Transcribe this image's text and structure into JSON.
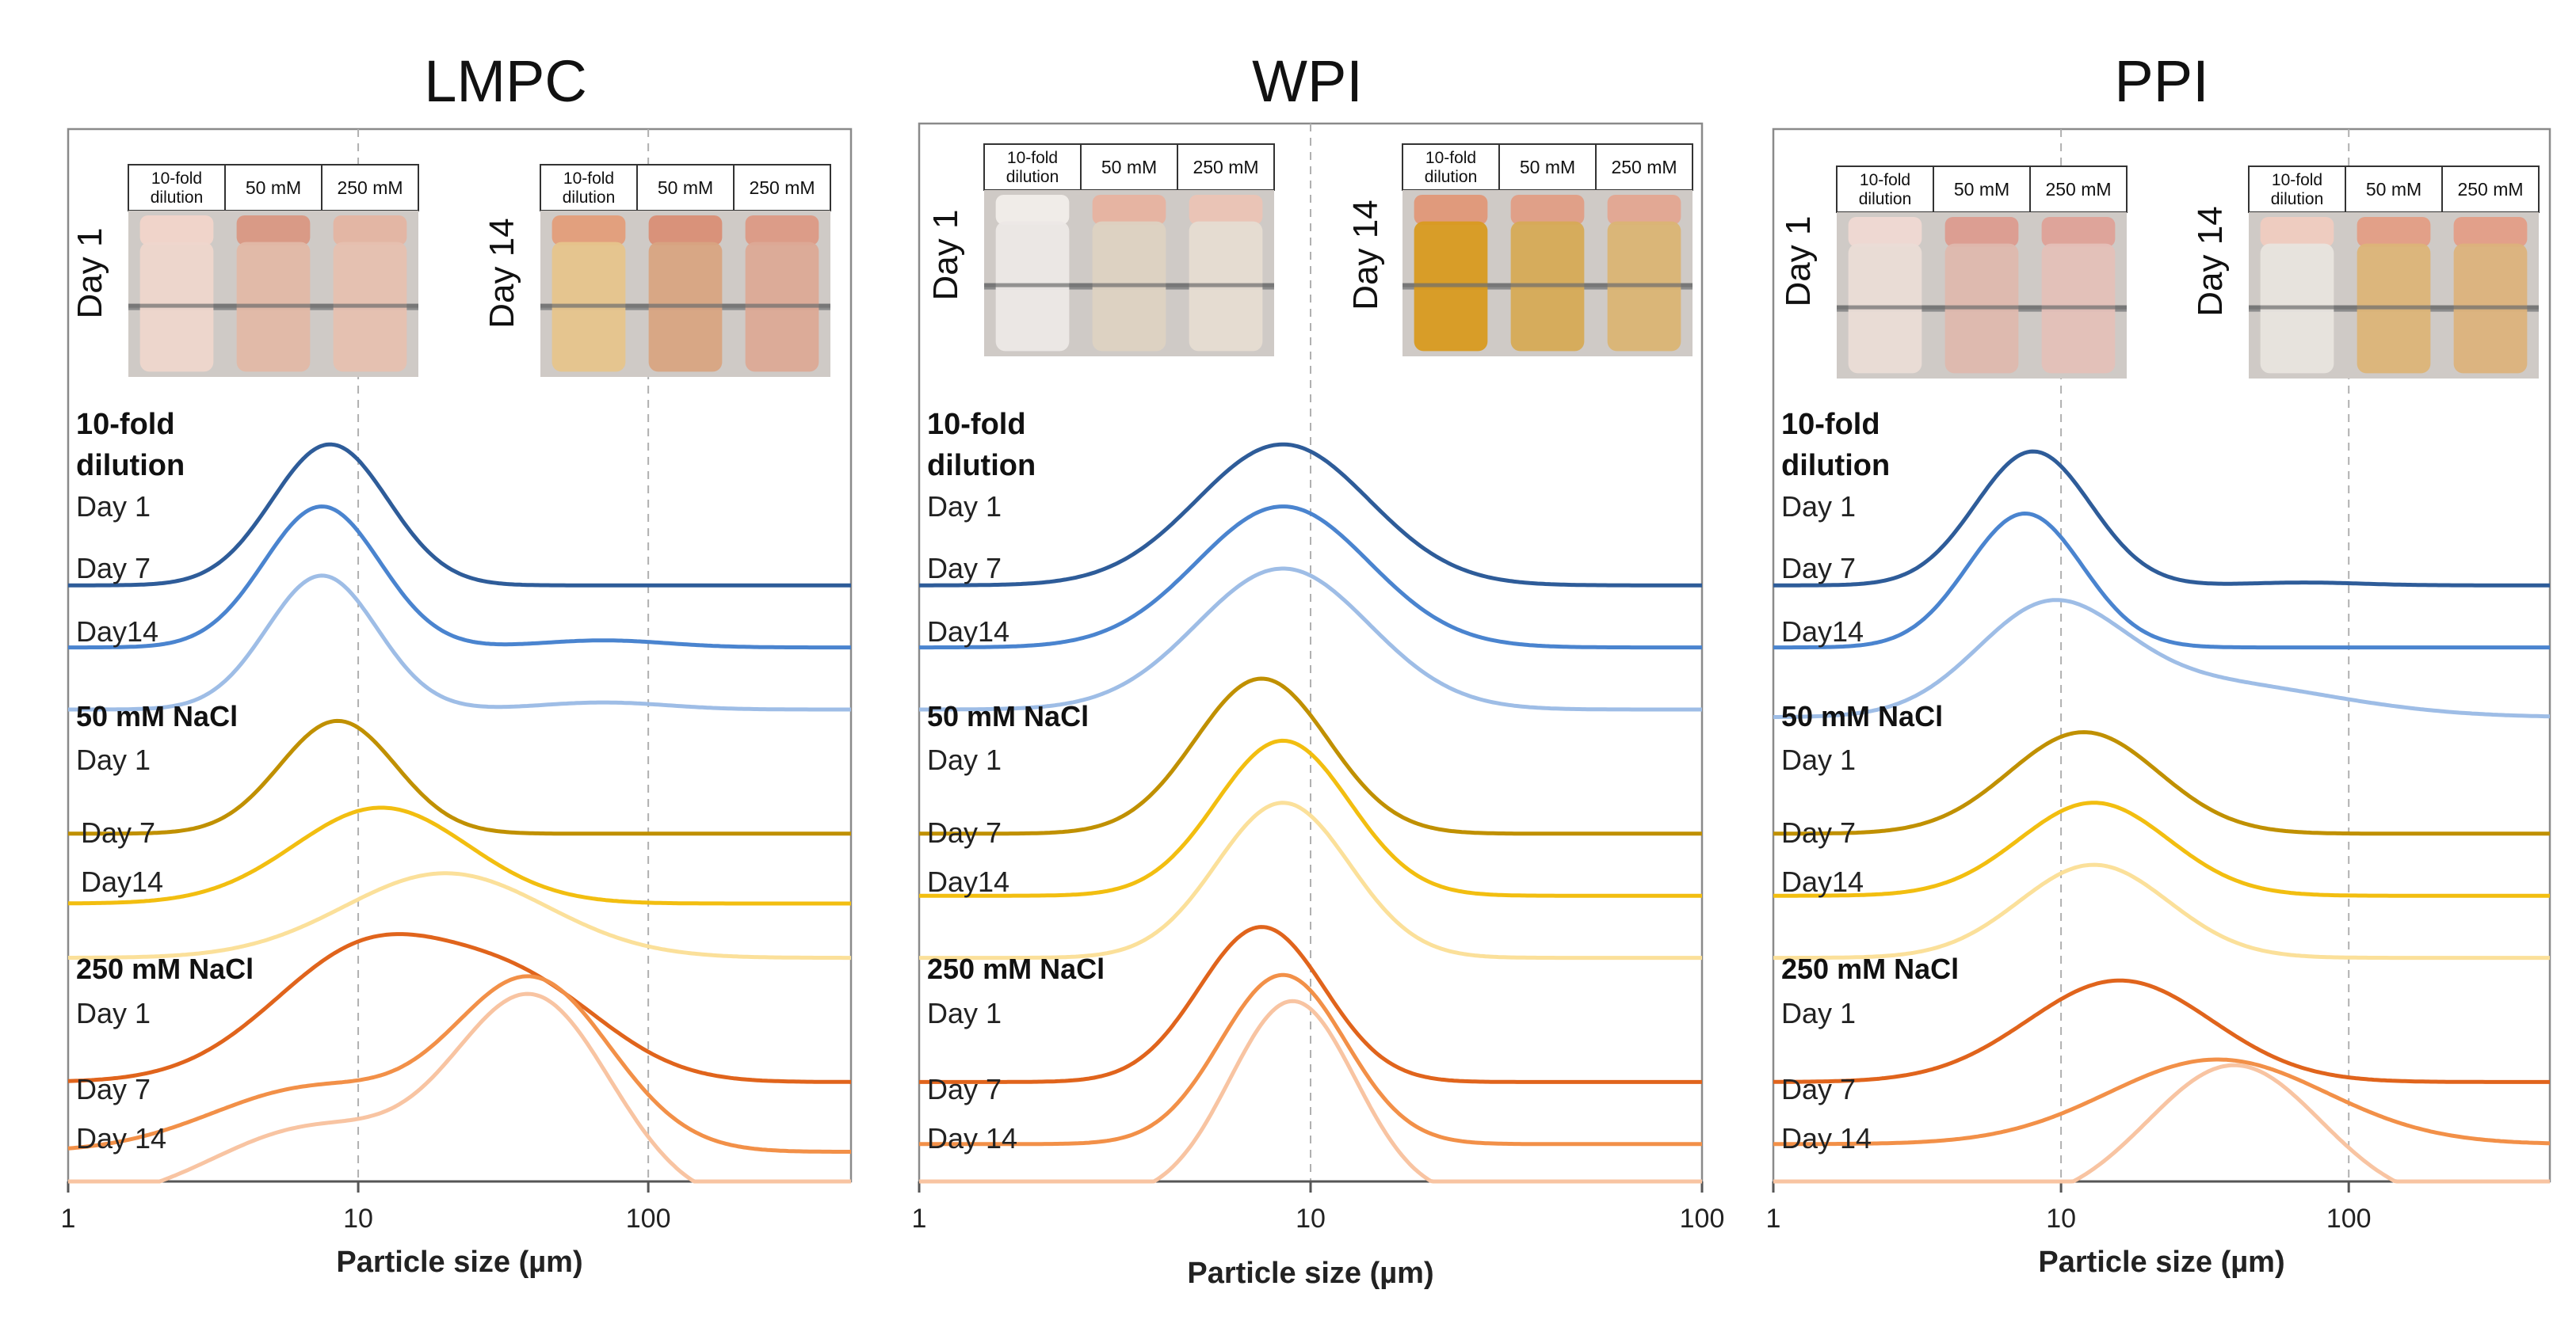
{
  "colors": {
    "dil_d1": "#2e5c99",
    "dil_d7": "#4a84cf",
    "dil_d14": "#9ebde6",
    "nacl50_d1": "#c09000",
    "nacl50_d7": "#f2be10",
    "nacl50_d14": "#fbe09a",
    "nacl250_d1": "#e0641c",
    "nacl250_d7": "#f29048",
    "nacl250_d14": "#f8c4a2",
    "axis": "#555555",
    "grid": "#b0b0b0",
    "frame": "#8a8a8a"
  },
  "chart_data": [
    {
      "type": "line",
      "title": "LMPC",
      "xlabel": "Particle size (µm)",
      "ylabel": "",
      "xscale": "log",
      "xlim": [
        1,
        500
      ],
      "xticks": [
        "1",
        "10",
        "100"
      ],
      "grid": "vertical dashed at 10 and 100",
      "photos": [
        {
          "day_label": "Day 1",
          "headers": [
            "10-fold dilution",
            "50 mM",
            "250 mM"
          ],
          "liquid": [
            "#eed6cc",
            "#e2b8a6",
            "#e6c0b0"
          ],
          "cap": [
            "#f0d4ca",
            "#d99a86",
            "#e3b6a4"
          ]
        },
        {
          "day_label": "Day 14",
          "headers": [
            "10-fold dilution",
            "50 mM",
            "250 mM"
          ],
          "liquid": [
            "#e6c48c",
            "#d8a482",
            "#dca996"
          ],
          "cap": [
            "#e2a07e",
            "#d9927a",
            "#dc9c88"
          ]
        }
      ],
      "groups": [
        {
          "label": "10-fold dilution",
          "day_labels": [
            "Day 1",
            "Day 7",
            "Day14"
          ]
        },
        {
          "label": "50 mM NaCl",
          "day_labels": [
            "Day 1",
            "Day 7",
            "Day14"
          ]
        },
        {
          "label": "250 mM NaCl",
          "day_labels": [
            "Day 1",
            "Day 7",
            "Day 14"
          ]
        }
      ],
      "series": [
        {
          "name": "10-fold dilution Day 1",
          "color_key": "dil_d1",
          "baseline_offset": 7.6,
          "peaks": [
            {
              "center": 8,
              "width": 0.2,
              "height": 1.0
            }
          ]
        },
        {
          "name": "10-fold dilution Day 7",
          "color_key": "dil_d7",
          "baseline_offset": 6.8,
          "peaks": [
            {
              "center": 7.5,
              "width": 0.2,
              "height": 1.0
            },
            {
              "center": 70,
              "width": 0.22,
              "height": 0.05
            }
          ]
        },
        {
          "name": "10-fold dilution Day14",
          "color_key": "dil_d14",
          "baseline_offset": 6.0,
          "peaks": [
            {
              "center": 7.5,
              "width": 0.19,
              "height": 0.95
            },
            {
              "center": 70,
              "width": 0.22,
              "height": 0.05
            }
          ]
        },
        {
          "name": "50 mM NaCl Day 1",
          "color_key": "nacl50_d1",
          "baseline_offset": 4.4,
          "peaks": [
            {
              "center": 8.5,
              "width": 0.2,
              "height": 0.8
            }
          ]
        },
        {
          "name": "50 mM NaCl Day 7",
          "color_key": "nacl50_d7",
          "baseline_offset": 3.5,
          "peaks": [
            {
              "center": 12,
              "width": 0.3,
              "height": 0.68
            }
          ]
        },
        {
          "name": "50 mM NaCl Day14",
          "color_key": "nacl50_d14",
          "baseline_offset": 2.8,
          "peaks": [
            {
              "center": 20,
              "width": 0.35,
              "height": 0.6
            }
          ]
        },
        {
          "name": "250 mM NaCl Day 1",
          "color_key": "nacl250_d1",
          "baseline_offset": 1.2,
          "peaks": [
            {
              "center": 11,
              "width": 0.33,
              "height": 0.95
            },
            {
              "center": 40,
              "width": 0.28,
              "height": 0.55
            }
          ]
        },
        {
          "name": "250 mM NaCl Day 7",
          "color_key": "nacl250_d7",
          "baseline_offset": 0.3,
          "peaks": [
            {
              "center": 40,
              "width": 0.27,
              "height": 1.2
            },
            {
              "center": 7,
              "width": 0.35,
              "height": 0.45
            }
          ]
        },
        {
          "name": "250 mM NaCl Day 14",
          "color_key": "nacl250_d14",
          "baseline_offset": -0.4,
          "peaks": [
            {
              "center": 40,
              "width": 0.27,
              "height": 1.45
            },
            {
              "center": 7,
              "width": 0.35,
              "height": 0.55
            }
          ]
        }
      ]
    },
    {
      "type": "line",
      "title": "WPI",
      "xlabel": "Particle size (µm)",
      "ylabel": "",
      "xscale": "log",
      "xlim": [
        1,
        100
      ],
      "xticks": [
        "1",
        "10",
        "100"
      ],
      "grid": "vertical dashed at 10",
      "photos": [
        {
          "day_label": "Day 1",
          "headers": [
            "10-fold dilution",
            "50 mM",
            "250 mM"
          ],
          "liquid": [
            "#ece8e6",
            "#ddd2c2",
            "#e6dcd2"
          ],
          "cap": [
            "#f0ece8",
            "#e6b4a2",
            "#eac4b6"
          ]
        },
        {
          "day_label": "Day 14",
          "headers": [
            "10-fold dilution",
            "50 mM",
            "250 mM"
          ],
          "liquid": [
            "#d89a20",
            "#d6aa56",
            "#dab474"
          ],
          "cap": [
            "#e09a7c",
            "#e0a088",
            "#e2a894"
          ]
        }
      ],
      "groups": [
        {
          "label": "10-fold dilution",
          "day_labels": [
            "Day 1",
            "Day 7",
            "Day14"
          ]
        },
        {
          "label": "50 mM NaCl",
          "day_labels": [
            "Day 1",
            "Day 7",
            "Day14"
          ]
        },
        {
          "label": "250 mM NaCl",
          "day_labels": [
            "Day 1",
            "Day 7",
            "Day 14"
          ]
        }
      ],
      "series": [
        {
          "name": "10-fold dilution Day 1",
          "color_key": "dil_d1",
          "baseline_offset": 7.6,
          "peaks": [
            {
              "center": 8.5,
              "width": 0.22,
              "height": 1.0
            }
          ]
        },
        {
          "name": "10-fold dilution Day 7",
          "color_key": "dil_d7",
          "baseline_offset": 6.8,
          "peaks": [
            {
              "center": 8.5,
              "width": 0.22,
              "height": 1.0
            }
          ]
        },
        {
          "name": "10-fold dilution Day14",
          "color_key": "dil_d14",
          "baseline_offset": 6.0,
          "peaks": [
            {
              "center": 8.5,
              "width": 0.22,
              "height": 1.0
            }
          ]
        },
        {
          "name": "50 mM NaCl Day 1",
          "color_key": "nacl50_d1",
          "baseline_offset": 4.4,
          "peaks": [
            {
              "center": 7.5,
              "width": 0.17,
              "height": 1.1
            }
          ]
        },
        {
          "name": "50 mM NaCl Day 7",
          "color_key": "nacl50_d7",
          "baseline_offset": 3.6,
          "peaks": [
            {
              "center": 8.5,
              "width": 0.17,
              "height": 1.1
            }
          ]
        },
        {
          "name": "50 mM NaCl Day14",
          "color_key": "nacl50_d14",
          "baseline_offset": 2.8,
          "peaks": [
            {
              "center": 8.5,
              "width": 0.17,
              "height": 1.1
            }
          ]
        },
        {
          "name": "250 mM NaCl Day 1",
          "color_key": "nacl250_d1",
          "baseline_offset": 1.2,
          "peaks": [
            {
              "center": 7.5,
              "width": 0.16,
              "height": 1.1
            }
          ]
        },
        {
          "name": "250 mM NaCl Day 7",
          "color_key": "nacl250_d7",
          "baseline_offset": 0.4,
          "peaks": [
            {
              "center": 8.5,
              "width": 0.16,
              "height": 1.2
            }
          ]
        },
        {
          "name": "250 mM NaCl Day 14",
          "color_key": "nacl250_d14",
          "baseline_offset": -0.3,
          "peaks": [
            {
              "center": 9,
              "width": 0.16,
              "height": 1.4
            }
          ]
        }
      ]
    },
    {
      "type": "line",
      "title": "PPI",
      "xlabel": "Particle size (µm)",
      "ylabel": "",
      "xscale": "log",
      "xlim": [
        1,
        500
      ],
      "xticks": [
        "1",
        "10",
        "100"
      ],
      "grid": "vertical dashed at 10 and 100",
      "photos": [
        {
          "day_label": "Day 1",
          "headers": [
            "10-fold dilution",
            "50 mM",
            "250 mM"
          ],
          "liquid": [
            "#eadcd6",
            "#deb8ae",
            "#e4c0b8"
          ],
          "cap": [
            "#eed8d2",
            "#dc9e92",
            "#dea49a"
          ]
        },
        {
          "day_label": "Day 14",
          "headers": [
            "10-fold dilution",
            "50 mM",
            "250 mM"
          ],
          "liquid": [
            "#e8e4de",
            "#dcb478",
            "#dcb27c"
          ],
          "cap": [
            "#eeccc0",
            "#e2a088",
            "#e2a08a"
          ]
        }
      ],
      "groups": [
        {
          "label": "10-fold dilution",
          "day_labels": [
            "Day 1",
            "Day 7",
            "Day14"
          ]
        },
        {
          "label": "50 mM NaCl",
          "day_labels": [
            "Day 1",
            "Day 7",
            "Day14"
          ]
        },
        {
          "label": "250 mM NaCl",
          "day_labels": [
            "Day 1",
            "Day 7",
            "Day 14"
          ]
        }
      ],
      "series": [
        {
          "name": "10-fold dilution Day 1",
          "color_key": "dil_d1",
          "baseline_offset": 7.6,
          "peaks": [
            {
              "center": 8,
              "width": 0.2,
              "height": 0.95
            },
            {
              "center": 70,
              "width": 0.2,
              "height": 0.02
            }
          ]
        },
        {
          "name": "10-fold dilution Day 7",
          "color_key": "dil_d7",
          "baseline_offset": 6.8,
          "peaks": [
            {
              "center": 7.5,
              "width": 0.2,
              "height": 0.95
            }
          ]
        },
        {
          "name": "10-fold dilution Day14",
          "color_key": "dil_d14",
          "baseline_offset": 5.9,
          "peaks": [
            {
              "center": 9,
              "width": 0.25,
              "height": 0.7
            },
            {
              "center": 30,
              "width": 0.45,
              "height": 0.25
            }
          ]
        },
        {
          "name": "50 mM NaCl Day 1",
          "color_key": "nacl50_d1",
          "baseline_offset": 4.4,
          "peaks": [
            {
              "center": 12,
              "width": 0.26,
              "height": 0.72
            }
          ]
        },
        {
          "name": "50 mM NaCl Day 7",
          "color_key": "nacl50_d7",
          "baseline_offset": 3.6,
          "peaks": [
            {
              "center": 13,
              "width": 0.26,
              "height": 0.66
            }
          ]
        },
        {
          "name": "50 mM NaCl Day14",
          "color_key": "nacl50_d14",
          "baseline_offset": 2.8,
          "peaks": [
            {
              "center": 13,
              "width": 0.26,
              "height": 0.66
            }
          ]
        },
        {
          "name": "250 mM NaCl Day 1",
          "color_key": "nacl250_d1",
          "baseline_offset": 1.2,
          "peaks": [
            {
              "center": 16,
              "width": 0.32,
              "height": 0.72
            }
          ]
        },
        {
          "name": "250 mM NaCl Day 7",
          "color_key": "nacl250_d7",
          "baseline_offset": 0.4,
          "peaks": [
            {
              "center": 35,
              "width": 0.38,
              "height": 0.6
            }
          ]
        },
        {
          "name": "250 mM NaCl Day 14",
          "color_key": "nacl250_d14",
          "baseline_offset": -0.4,
          "peaks": [
            {
              "center": 40,
              "width": 0.3,
              "height": 1.0
            }
          ]
        }
      ]
    }
  ]
}
